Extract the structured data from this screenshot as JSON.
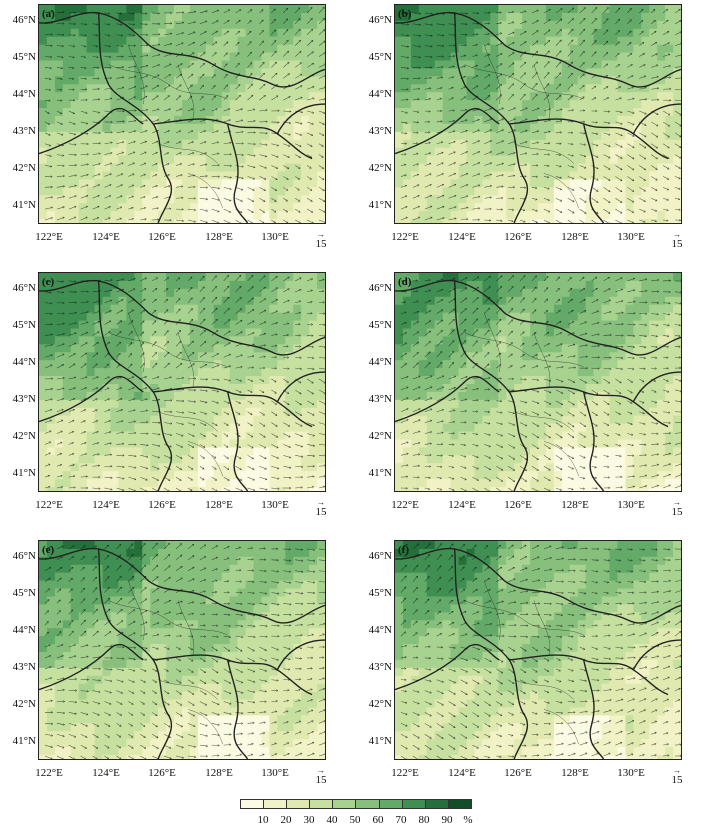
{
  "panels": [
    {
      "id": "a",
      "label": "(a)"
    },
    {
      "id": "b",
      "label": "(b)"
    },
    {
      "id": "c",
      "label": "(c)"
    },
    {
      "id": "d",
      "label": "(d)"
    },
    {
      "id": "e",
      "label": "(e)"
    },
    {
      "id": "f",
      "label": "(f)"
    }
  ],
  "lat_labels": [
    "46°N",
    "45°N",
    "44°N",
    "43°N",
    "42°N",
    "41°N"
  ],
  "lon_labels": [
    "122°E",
    "124°E",
    "126°E",
    "128°E",
    "130°E"
  ],
  "reference_vector": {
    "value": "15",
    "arrow": "→"
  },
  "colorbar": {
    "labels": [
      "10",
      "20",
      "30",
      "40",
      "50",
      "60",
      "70",
      "80",
      "90",
      "%"
    ],
    "colors": [
      "#fbfbe3",
      "#f1f2c5",
      "#e0eab0",
      "#c6e0a0",
      "#a8d290",
      "#86c07c",
      "#63aa68",
      "#3f8f52",
      "#256f3b",
      "#104f27"
    ]
  },
  "colors": {
    "border": "#222222",
    "vector": "#1a1a1a"
  }
}
